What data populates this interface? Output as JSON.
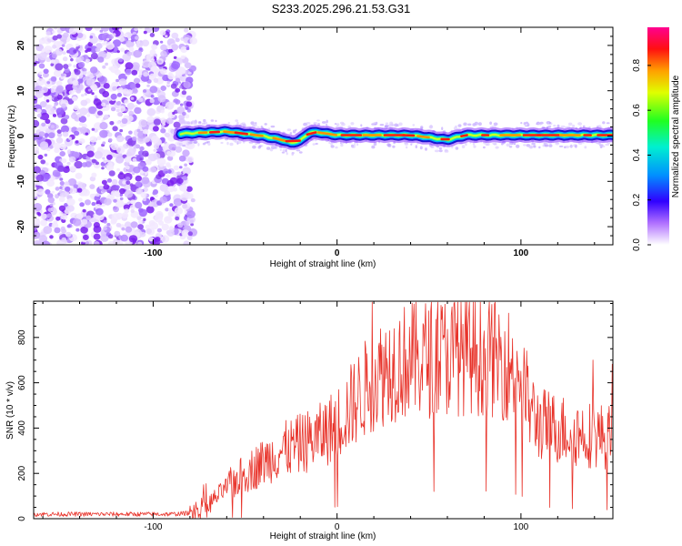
{
  "title": "S233.2025.296.21.53.G31",
  "chart_data": [
    {
      "type": "heatmap",
      "xlabel": "Height of straight line (km)",
      "ylabel": "Frequency (Hz)",
      "xlim": [
        -165,
        150
      ],
      "ylim": [
        -24,
        24
      ],
      "xticks": [
        -100,
        0,
        100
      ],
      "yticks": [
        -20,
        -10,
        0,
        10,
        20
      ],
      "colorbar": {
        "label": "Normalized spectral amplitude",
        "range": [
          0,
          0.97
        ],
        "ticks": [
          0.0,
          0.2,
          0.4,
          0.6,
          0.8
        ],
        "colors": [
          "#ffffff",
          "#9a00ff",
          "#0000ff",
          "#00c0ff",
          "#00ff80",
          "#c0ff00",
          "#ffc000",
          "#ff2000",
          "#ff0090"
        ]
      },
      "noise_region_x": [
        -165,
        -80
      ],
      "signal_start_x": -85,
      "ridge": {
        "x": [
          -85,
          -70,
          -60,
          -50,
          -40,
          -30,
          -25,
          -20,
          -15,
          -10,
          0,
          10,
          20,
          30,
          40,
          50,
          55,
          60,
          65,
          70,
          80,
          90,
          100,
          110,
          120,
          130,
          140,
          150
        ],
        "freq": [
          0.5,
          0.8,
          1.0,
          0.5,
          0.0,
          -0.8,
          -1.5,
          -1.0,
          0.8,
          0.8,
          0.2,
          0.2,
          0.2,
          0.2,
          0.2,
          -0.3,
          -0.6,
          -0.8,
          -0.3,
          0.2,
          0.2,
          0.2,
          0.2,
          0.2,
          0.2,
          0.2,
          0.2,
          0.2
        ]
      }
    },
    {
      "type": "line",
      "xlabel": "Height of straight line (km)",
      "ylabel": "SNR (10 * v/v)",
      "xlim": [
        -165,
        150
      ],
      "ylim": [
        0,
        960
      ],
      "xticks": [
        -100,
        0,
        100
      ],
      "yticks": [
        0,
        200,
        400,
        600,
        800
      ],
      "color": "#e8332a",
      "envelope": {
        "x": [
          -165,
          -90,
          -80,
          -70,
          -60,
          -50,
          -40,
          -30,
          -20,
          -10,
          0,
          10,
          20,
          30,
          40,
          50,
          60,
          70,
          80,
          90,
          100,
          105,
          110,
          120,
          130,
          140,
          150
        ],
        "mean": [
          20,
          20,
          25,
          60,
          140,
          200,
          250,
          300,
          330,
          360,
          420,
          520,
          620,
          680,
          700,
          710,
          720,
          730,
          720,
          700,
          640,
          480,
          420,
          400,
          380,
          370,
          360
        ]
      }
    }
  ]
}
